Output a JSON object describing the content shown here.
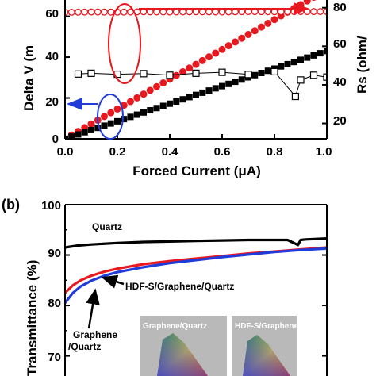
{
  "chart_data": [
    {
      "type": "scatter",
      "panel_label": "",
      "xlabel": "Forced Current (μA)",
      "ylabel": "Delta V (m",
      "ylabel_right": "Rs (ohm/",
      "xlim": [
        0,
        1.0
      ],
      "ylim": [
        0,
        68
      ],
      "ylim_right": [
        12,
        84
      ],
      "x_ticks": [
        "0.0",
        "0.2",
        "0.4",
        "0.6",
        "0.8",
        "1.0"
      ],
      "y_ticks": [
        "0",
        "20",
        "40",
        "60"
      ],
      "y_ticks_right": [
        "20",
        "40",
        "60",
        "80"
      ],
      "series": [
        {
          "axis": "left",
          "marker": "filled-circle",
          "color": "#e8191e",
          "x": [
            0.0,
            0.1,
            0.2,
            0.3,
            0.4,
            0.5,
            0.6,
            0.7,
            0.8,
            0.9,
            1.0
          ],
          "y": [
            0.0,
            7.3,
            14.6,
            21.9,
            29.2,
            36.5,
            43.8,
            51.1,
            58.4,
            65.7,
            73.0
          ]
        },
        {
          "axis": "left",
          "marker": "filled-square",
          "color": "#000000",
          "x": [
            0.0,
            0.1,
            0.2,
            0.3,
            0.4,
            0.5,
            0.6,
            0.7,
            0.8,
            0.9,
            1.0
          ],
          "y": [
            0.0,
            4.3,
            8.6,
            12.9,
            17.2,
            21.5,
            25.8,
            30.1,
            34.4,
            38.7,
            43.0
          ]
        },
        {
          "axis": "right",
          "marker": "open-circle",
          "color": "#e8191e",
          "x": [
            0.0,
            0.1,
            0.2,
            0.3,
            0.4,
            0.5,
            0.6,
            0.7,
            0.8,
            0.9,
            1.0
          ],
          "y": [
            77.6,
            77.8,
            77.7,
            77.9,
            77.8,
            77.9,
            77.8,
            78.0,
            77.9,
            78.0,
            78.0
          ]
        },
        {
          "axis": "right",
          "marker": "open-square",
          "color": "#000000",
          "x": [
            0.05,
            0.1,
            0.2,
            0.3,
            0.4,
            0.5,
            0.6,
            0.7,
            0.8,
            0.88,
            0.9,
            0.95,
            1.0
          ],
          "y": [
            45.6,
            46.0,
            45.5,
            45.8,
            45.0,
            46.0,
            46.5,
            45.4,
            46.8,
            34.0,
            42.5,
            45.0,
            44.0
          ]
        }
      ]
    },
    {
      "type": "line",
      "panel_label": "(b)",
      "xlabel": "",
      "ylabel": "Transmittance (%)",
      "ylim": [
        66,
        100
      ],
      "xlim": [
        0,
        1
      ],
      "y_ticks": [
        "100",
        "90",
        "80",
        "70"
      ],
      "series": [
        {
          "name": "Quartz",
          "color": "#000000",
          "x": [
            0.0,
            0.05,
            0.1,
            0.2,
            0.3,
            0.4,
            0.5,
            0.6,
            0.7,
            0.85,
            0.89,
            0.9,
            0.92,
            1.0
          ],
          "y": [
            91.5,
            91.9,
            92.1,
            92.4,
            92.6,
            92.7,
            92.8,
            92.9,
            93.0,
            93.0,
            92.0,
            93.0,
            93.1,
            93.3
          ]
        },
        {
          "name": "Graphene/Quartz",
          "color": "#e8191e",
          "x": [
            0.0,
            0.03,
            0.06,
            0.1,
            0.15,
            0.2,
            0.3,
            0.4,
            0.5,
            0.6,
            0.7,
            0.8,
            0.9,
            1.0
          ],
          "y": [
            82.5,
            84.0,
            85.0,
            85.9,
            86.7,
            87.3,
            88.2,
            88.8,
            89.3,
            89.8,
            90.3,
            90.7,
            91.1,
            91.5
          ]
        },
        {
          "name": "HDF-S/Graphene/Quartz",
          "color": "#1f3bd8",
          "x": [
            0.0,
            0.03,
            0.06,
            0.1,
            0.15,
            0.2,
            0.3,
            0.4,
            0.5,
            0.6,
            0.7,
            0.8,
            0.9,
            1.0
          ],
          "y": [
            80.5,
            82.5,
            83.8,
            84.9,
            85.9,
            86.6,
            87.6,
            88.4,
            89.0,
            89.6,
            90.1,
            90.6,
            91.0,
            91.3
          ]
        }
      ],
      "annotations": [
        "Quartz",
        "HDF-S/Graphene/Quartz",
        "Graphene",
        "/Quartz"
      ],
      "inset_labels": [
        "Graphene/Quartz",
        "HDF-S/Graphene"
      ]
    }
  ]
}
